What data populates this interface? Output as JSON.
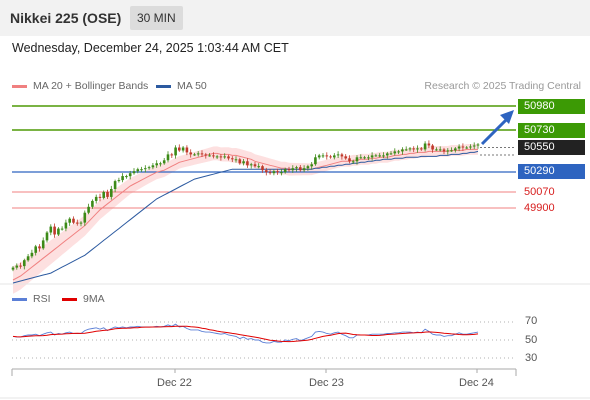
{
  "header": {
    "title": "Nikkei 225 (OSE)",
    "timeframe": "30 MIN"
  },
  "datetime": "Wednesday, December 24, 2025 1:03:44 AM CET",
  "credit": "Research © 2025 Trading Central",
  "legend": {
    "ma20": {
      "label": "MA 20 + Bollinger Bands",
      "color": "#f08080"
    },
    "ma50": {
      "label": "MA 50",
      "color": "#2c5aa0"
    },
    "rsi": {
      "label": "RSI",
      "color": "#5b7fd6"
    },
    "rsi9ma": {
      "label": "9MA",
      "color": "#e00000"
    }
  },
  "levels": {
    "r2": "50980",
    "r1": "50730",
    "last": "50550",
    "pivot": "50290",
    "s1": "50070",
    "s2": "49900"
  },
  "rsi_scale": {
    "t70": "70",
    "t50": "50",
    "t30": "30"
  },
  "xaxis": {
    "d1": "Dec 22",
    "d2": "Dec 23",
    "d3": "Dec 24"
  },
  "chart_data": {
    "type": "candlestick",
    "bars": 124,
    "y_range": [
      49190,
      51020
    ],
    "rsi_range": [
      0,
      100
    ],
    "close": [
      49305,
      49325,
      49320,
      49380,
      49420,
      49455,
      49520,
      49500,
      49580,
      49660,
      49720,
      49640,
      49700,
      49700,
      49760,
      49800,
      49760,
      49750,
      49760,
      49860,
      49920,
      49980,
      50020,
      50010,
      50070,
      50020,
      50100,
      50180,
      50190,
      50230,
      50230,
      50260,
      50280,
      50300,
      50300,
      50310,
      50320,
      50340,
      50360,
      50360,
      50390,
      50450,
      50440,
      50520,
      50490,
      50520,
      50470,
      50450,
      50450,
      50460,
      50450,
      50440,
      50440,
      50430,
      50430,
      50420,
      50430,
      50410,
      50400,
      50400,
      50360,
      50380,
      50340,
      50350,
      50330,
      50330,
      50290,
      50270,
      50260,
      50280,
      50270,
      50270,
      50300,
      50290,
      50310,
      50320,
      50290,
      50310,
      50330,
      50350,
      50420,
      50440,
      50440,
      50430,
      50420,
      50440,
      50450,
      50430,
      50410,
      50380,
      50380,
      50420,
      50420,
      50420,
      50420,
      50440,
      50440,
      50440,
      50440,
      50460,
      50460,
      50480,
      50480,
      50500,
      50500,
      50510,
      50500,
      50510,
      50500,
      50560,
      50540,
      50500,
      50500,
      50500,
      50480,
      50490,
      50490,
      50510,
      50530,
      50520,
      50520,
      50530,
      50540,
      50550
    ],
    "ma20": [
      49180,
      49200,
      49220,
      49250,
      49280,
      49310,
      49340,
      49370,
      49400,
      49430,
      49460,
      49490,
      49520,
      49550,
      49580,
      49610,
      49640,
      49670,
      49700,
      49730,
      49770,
      49810,
      49850,
      49890,
      49920,
      49950,
      49980,
      50010,
      50040,
      50070,
      50100,
      50130,
      50150,
      50170,
      50190,
      50210,
      50230,
      50250,
      50270,
      50280,
      50290,
      50310,
      50330,
      50350,
      50370,
      50380,
      50390,
      50400,
      50410,
      50420,
      50430,
      50440,
      50450,
      50460,
      50460,
      50450,
      50450,
      50450,
      50440,
      50440,
      50430,
      50420,
      50410,
      50400,
      50380,
      50370,
      50360,
      50350,
      50340,
      50330,
      50320,
      50310,
      50310,
      50300,
      50300,
      50300,
      50300,
      50300,
      50300,
      50300,
      50310,
      50320,
      50330,
      50340,
      50350,
      50360,
      50370,
      50380,
      50380,
      50380,
      50390,
      50390,
      50400,
      50400,
      50400,
      50410,
      50410,
      50420,
      50420,
      50420,
      50430,
      50440,
      50440,
      50450,
      50450,
      50460,
      50460,
      50470,
      50470,
      50470,
      50480,
      50480,
      50480,
      50480,
      50480,
      50480,
      50490,
      50490,
      50490,
      50490,
      50500,
      50500,
      50500,
      50500
    ],
    "ma50": [
      49150,
      49160,
      49170,
      49180,
      49190,
      49200,
      49210,
      49220,
      49230,
      49240,
      49250,
      49270,
      49290,
      49310,
      49330,
      49350,
      49370,
      49390,
      49410,
      49430,
      49460,
      49490,
      49520,
      49550,
      49580,
      49610,
      49640,
      49670,
      49700,
      49730,
      49760,
      49790,
      49820,
      49850,
      49880,
      49910,
      49940,
      49970,
      50000,
      50020,
      50040,
      50060,
      50080,
      50100,
      50120,
      50140,
      50160,
      50180,
      50200,
      50210,
      50220,
      50230,
      50240,
      50250,
      50260,
      50270,
      50280,
      50290,
      50300,
      50300,
      50300,
      50300,
      50300,
      50300,
      50300,
      50300,
      50300,
      50300,
      50300,
      50300,
      50300,
      50300,
      50300,
      50300,
      50300,
      50300,
      50300,
      50300,
      50300,
      50300,
      50310,
      50310,
      50320,
      50320,
      50330,
      50330,
      50340,
      50340,
      50350,
      50350,
      50360,
      50360,
      50370,
      50370,
      50380,
      50380,
      50390,
      50390,
      50400,
      50400,
      50400,
      50410,
      50410,
      50410,
      50420,
      50420,
      50420,
      50420,
      50430,
      50430,
      50430,
      50430,
      50430,
      50440,
      50440,
      50440,
      50450,
      50450,
      50450,
      50460,
      50460,
      50470,
      50470,
      50480
    ],
    "rsi": [
      55,
      54,
      54,
      56,
      57,
      57,
      58,
      56,
      58,
      60,
      61,
      57,
      59,
      58,
      60,
      61,
      59,
      59,
      59,
      63,
      65,
      66,
      67,
      65,
      67,
      63,
      66,
      68,
      67,
      68,
      67,
      68,
      68,
      69,
      68,
      68,
      68,
      68,
      69,
      68,
      69,
      71,
      69,
      72,
      68,
      69,
      66,
      64,
      64,
      64,
      62,
      61,
      61,
      60,
      59,
      58,
      59,
      57,
      56,
      55,
      52,
      54,
      51,
      52,
      50,
      50,
      47,
      46,
      46,
      48,
      47,
      47,
      50,
      49,
      51,
      52,
      49,
      51,
      53,
      55,
      61,
      62,
      61,
      59,
      58,
      60,
      61,
      58,
      56,
      53,
      53,
      57,
      57,
      57,
      57,
      58,
      58,
      58,
      58,
      59,
      59,
      60,
      60,
      61,
      61,
      61,
      60,
      61,
      60,
      65,
      62,
      58,
      57,
      57,
      55,
      56,
      56,
      58,
      60,
      58,
      58,
      59,
      60,
      61
    ]
  }
}
